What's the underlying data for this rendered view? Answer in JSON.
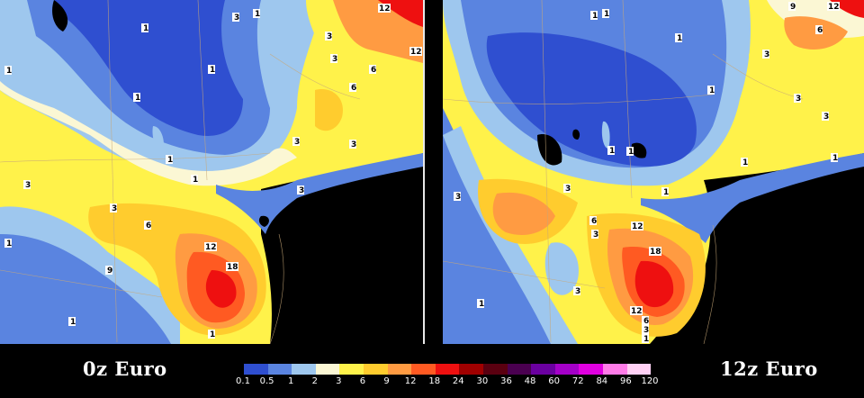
{
  "panels": {
    "left": {
      "label": "0z Euro"
    },
    "right": {
      "label": "12z Euro"
    }
  },
  "legend": {
    "ticks": [
      "0.1",
      "0.5",
      "1",
      "2",
      "3",
      "6",
      "9",
      "12",
      "18",
      "24",
      "30",
      "36",
      "48",
      "60",
      "72",
      "84",
      "96",
      "120"
    ],
    "colors": [
      "#2f4fd0",
      "#5a84e0",
      "#9ec7ee",
      "#fbf7d4",
      "#fff24a",
      "#ffcc2e",
      "#ff9b42",
      "#ff5a22",
      "#ee1010",
      "#a00000",
      "#5a0010",
      "#4a0050",
      "#6a00a0",
      "#a400c8",
      "#e000e0",
      "#ff7ce8",
      "#ffd0f4"
    ]
  },
  "map_labels": {
    "left": [
      "1",
      "1",
      "1",
      "1",
      "1",
      "1",
      "1",
      "1",
      "1",
      "1",
      "3",
      "3",
      "3",
      "3",
      "3",
      "3",
      "3",
      "6",
      "6",
      "9",
      "12",
      "12",
      "12",
      "18",
      "3",
      "6"
    ],
    "right": [
      "1",
      "1",
      "1",
      "1",
      "1",
      "1",
      "1",
      "1",
      "1",
      "1",
      "3",
      "3",
      "3",
      "3",
      "3",
      "3",
      "3",
      "6",
      "6",
      "9",
      "12",
      "12",
      "18",
      "12",
      "6",
      "3",
      "1"
    ]
  },
  "colors": {
    "land_boundaries": "#c8a878",
    "ocean": "#000000",
    "divider": "#e8e8e8"
  }
}
